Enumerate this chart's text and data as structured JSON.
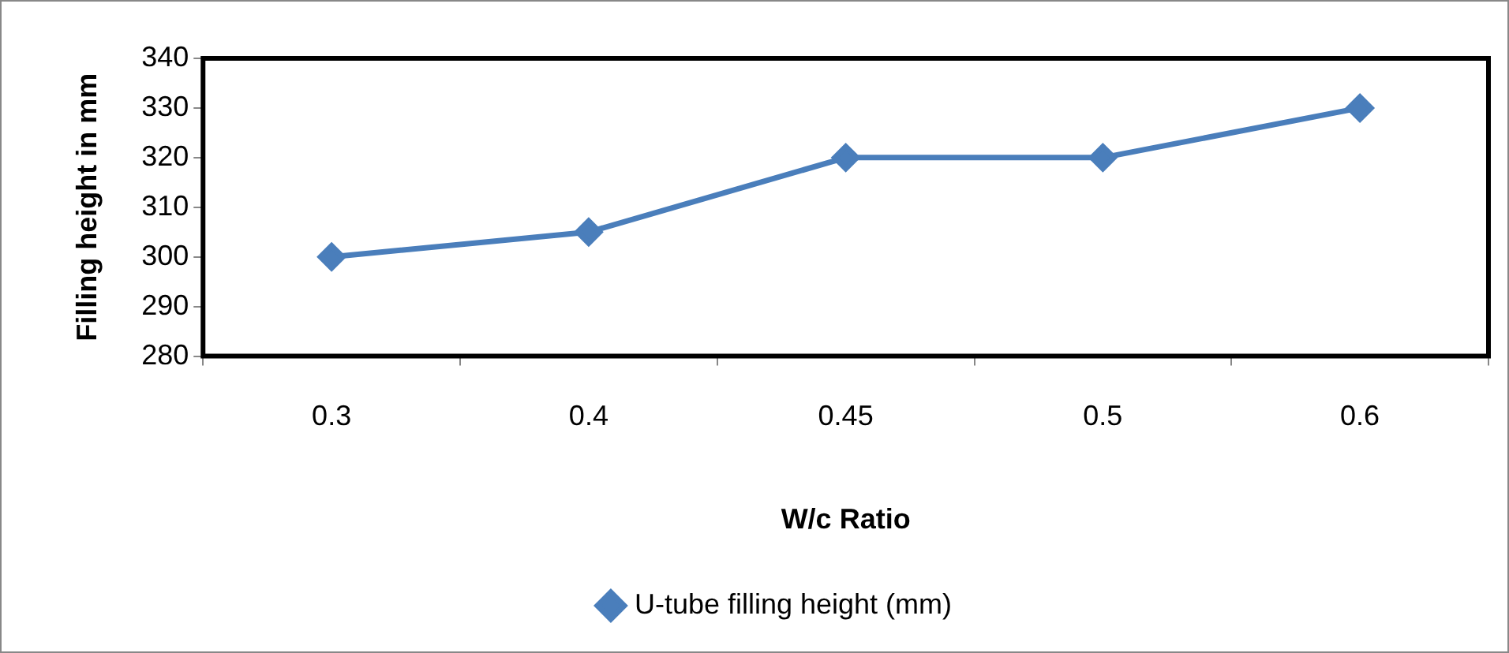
{
  "chart_data": {
    "type": "line",
    "xlabel": "W/c Ratio",
    "ylabel": "Filling height in mm",
    "categories": [
      "0.3",
      "0.4",
      "0.45",
      "0.5",
      "0.6"
    ],
    "series": [
      {
        "name": "U-tube filling height (mm)",
        "color": "#4a7ebb",
        "values": [
          300,
          305,
          320,
          320,
          330
        ]
      }
    ],
    "ylim": [
      280,
      340
    ],
    "yticks": [
      280,
      290,
      300,
      310,
      320,
      330,
      340
    ],
    "grid": false,
    "legend": "bottom",
    "marker": "diamond",
    "line_style": "solid"
  }
}
